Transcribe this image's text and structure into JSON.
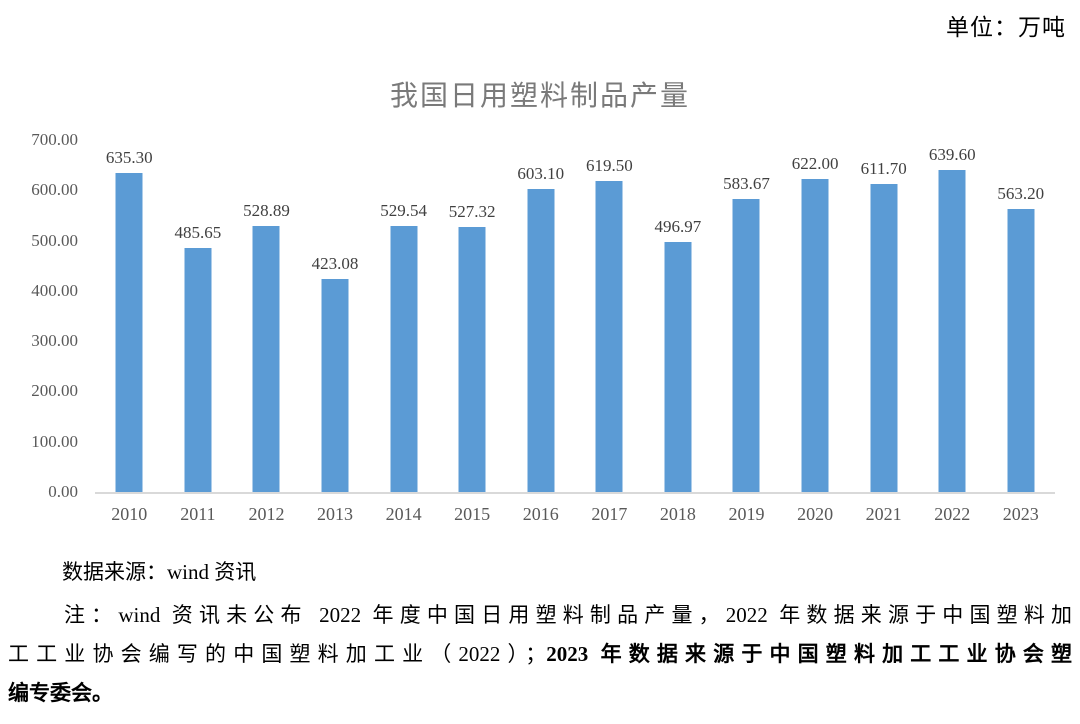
{
  "page": {
    "unit_label": "单位：万吨",
    "source_line": "数据来源：wind 资讯",
    "note": {
      "line1": "注：wind 资讯未公布 2022 年度中国日用塑料制品产量，2022 年数据来源于中国塑料加",
      "line2_regular": "工工业协会编写的中国塑料加工业（2022）；",
      "line2_bold": "2023 年数据来源于中国塑料加工工业协会塑",
      "line3_bold": "编专委会。"
    }
  },
  "chart_data": {
    "type": "bar",
    "title": "我国日用塑料制品产量",
    "xlabel": "",
    "ylabel": "",
    "categories": [
      "2010",
      "2011",
      "2012",
      "2013",
      "2014",
      "2015",
      "2016",
      "2017",
      "2018",
      "2019",
      "2020",
      "2021",
      "2022",
      "2023"
    ],
    "values": [
      635.3,
      485.65,
      528.89,
      423.08,
      529.54,
      527.32,
      603.1,
      619.5,
      496.97,
      583.67,
      622.0,
      611.7,
      639.6,
      563.2
    ],
    "value_labels": [
      "635.30",
      "485.65",
      "528.89",
      "423.08",
      "529.54",
      "527.32",
      "603.10",
      "619.50",
      "496.97",
      "583.67",
      "622.00",
      "611.70",
      "639.60",
      "563.20"
    ],
    "ylim": [
      0,
      700
    ],
    "ytick_step": 100,
    "ytick_labels_top_to_bottom": [
      "700.00",
      "600.00",
      "500.00",
      "400.00",
      "300.00",
      "200.00",
      "100.00",
      "0.00"
    ],
    "grid": false,
    "legend": null,
    "colors": {
      "bar": "#5B9BD5",
      "axis_line": "#d9d9d9",
      "tick_text": "#595959",
      "data_label_text": "#404040",
      "title_text": "#7a7a7a"
    }
  }
}
